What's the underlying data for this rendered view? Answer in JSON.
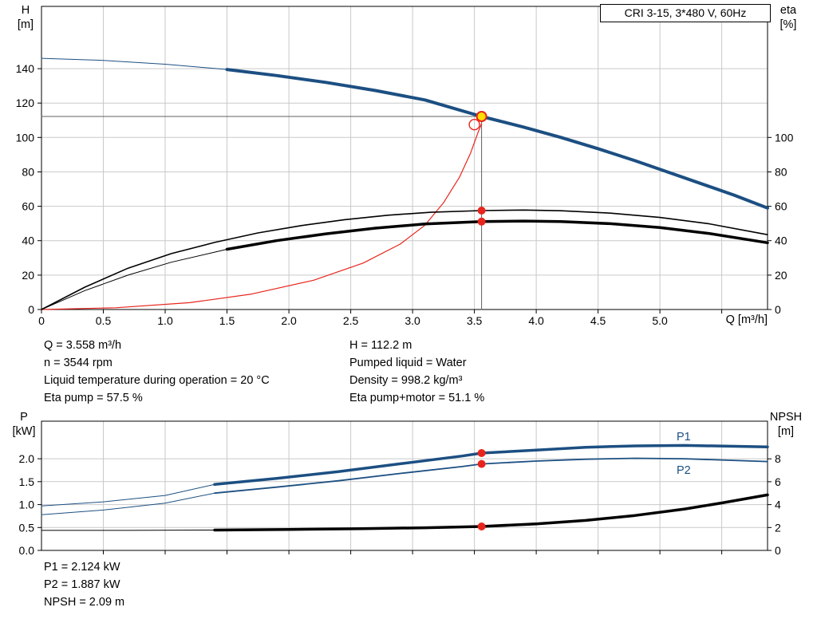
{
  "title_box": {
    "label": "CRI 3-15, 3*480 V, 60Hz"
  },
  "axis_corner_labels": {
    "top_left_1": "H",
    "top_left_2": "[m]",
    "top_right_1": "eta",
    "top_right_2": "[%]",
    "top_x": "Q [m³/h]",
    "bottom_left_1": "P",
    "bottom_left_2": "[kW]",
    "bottom_right_1": "NPSH",
    "bottom_right_2": "[m]"
  },
  "curve_labels": {
    "p1": "P1",
    "p2": "P2"
  },
  "info_top": {
    "left": [
      "Q = 3.558 m³/h",
      "n = 3544 rpm",
      "Liquid temperature during operation = 20 °C",
      "Eta pump = 57.5 %"
    ],
    "right": [
      "H = 112.2 m",
      "Pumped liquid = Water",
      "Density = 998.2 kg/m³",
      "Eta pump+motor = 51.1 %"
    ]
  },
  "info_bottom": [
    "P1 = 2.124 kW",
    "P2 = 1.887 kW",
    "NPSH = 2.09 m"
  ],
  "colors": {
    "curve_blue": "#1c4f82",
    "curve_black": "#000000",
    "curve_red": "#e8251d",
    "marker_red": "#e8251d",
    "marker_yellow": "#ffdf00",
    "crosshair": "#5f5f5f",
    "grid": "#c9c9c9"
  },
  "chart_data": [
    {
      "id": "head-capacity-efficiency",
      "type": "line",
      "title": "CRI 3-15, 3*480 V, 60Hz",
      "duty_point": {
        "q": 3.558,
        "h": 112.2,
        "eta_pump": 57.5,
        "eta_pump_motor": 51.1
      },
      "x_axis": {
        "label": "Q [m³/h]",
        "min": 0,
        "max": 5.87,
        "ticks": [
          [
            0,
            "0"
          ],
          [
            0.5,
            "0.5"
          ],
          [
            1,
            "1.0"
          ],
          [
            1.5,
            "1.5"
          ],
          [
            2,
            "2.0"
          ],
          [
            2.5,
            "2.5"
          ],
          [
            3,
            "3.0"
          ],
          [
            3.5,
            "3.5"
          ],
          [
            4,
            "4.0"
          ],
          [
            4.5,
            "4.5"
          ],
          [
            5,
            "5.0"
          ],
          [
            5.5,
            ""
          ]
        ]
      },
      "y_left": {
        "label": "H [m]",
        "min": 0,
        "max": 176.2,
        "ticks": [
          [
            0,
            "0"
          ],
          [
            20,
            "20"
          ],
          [
            40,
            "40"
          ],
          [
            60,
            "60"
          ],
          [
            80,
            "80"
          ],
          [
            100,
            "100"
          ],
          [
            120,
            "120"
          ],
          [
            140,
            "140"
          ]
        ]
      },
      "y_right": {
        "label": "eta [%]",
        "min": 0,
        "max": 176.2,
        "ticks": [
          [
            0,
            "0"
          ],
          [
            20,
            "20"
          ],
          [
            40,
            "40"
          ],
          [
            60,
            "60"
          ],
          [
            80,
            "80"
          ],
          [
            100,
            "100"
          ]
        ]
      },
      "series": [
        {
          "name": "crosshair",
          "axis": "left",
          "color": "#5f5f5f",
          "width": 1,
          "interactable": false,
          "points": [
            [
              0,
              112.2
            ],
            [
              3.558,
              112.2
            ],
            [
              3.558,
              0
            ]
          ]
        },
        {
          "name": "system-curve-red",
          "axis": "left",
          "color": "#e8251d",
          "width": 1.2,
          "interactable": false,
          "points": [
            [
              0,
              0
            ],
            [
              0.6,
              1
            ],
            [
              1.2,
              4
            ],
            [
              1.7,
              9
            ],
            [
              2.2,
              17
            ],
            [
              2.6,
              27
            ],
            [
              2.9,
              38
            ],
            [
              3.1,
              49
            ],
            [
              3.25,
              62
            ],
            [
              3.38,
              77
            ],
            [
              3.47,
              91
            ],
            [
              3.53,
              103
            ],
            [
              3.558,
              108
            ]
          ]
        },
        {
          "name": "hq-lead",
          "axis": "left",
          "color": "#1c4f82",
          "width": 1,
          "interactable": false,
          "points": [
            [
              0,
              146
            ],
            [
              0.5,
              144.8
            ],
            [
              1.0,
              142.6
            ],
            [
              1.5,
              139.5
            ]
          ]
        },
        {
          "name": "hq-main",
          "axis": "left",
          "color": "#1c4f82",
          "width": 4,
          "interactable": true,
          "points": [
            [
              1.5,
              139.5
            ],
            [
              1.9,
              136
            ],
            [
              2.3,
              132
            ],
            [
              2.7,
              127.3
            ],
            [
              3.1,
              121.8
            ],
            [
              3.558,
              112.2
            ],
            [
              3.9,
              106
            ],
            [
              4.2,
              100
            ],
            [
              4.5,
              93.5
            ],
            [
              4.8,
              86.5
            ],
            [
              5.1,
              79
            ],
            [
              5.4,
              71.5
            ],
            [
              5.6,
              66.5
            ],
            [
              5.87,
              59
            ]
          ]
        },
        {
          "name": "eta-pump",
          "axis": "right",
          "color": "#000000",
          "width": 1.6,
          "interactable": true,
          "points": [
            [
              0,
              0
            ],
            [
              0.35,
              13
            ],
            [
              0.7,
              24
            ],
            [
              1.05,
              32.5
            ],
            [
              1.4,
              39
            ],
            [
              1.75,
              44.5
            ],
            [
              2.1,
              48.8
            ],
            [
              2.45,
              52.2
            ],
            [
              2.8,
              54.8
            ],
            [
              3.15,
              56.5
            ],
            [
              3.558,
              57.5
            ],
            [
              3.9,
              57.8
            ],
            [
              4.2,
              57.4
            ],
            [
              4.6,
              56
            ],
            [
              5.0,
              53.5
            ],
            [
              5.4,
              49.8
            ],
            [
              5.87,
              43.5
            ]
          ]
        },
        {
          "name": "eta-pump-motor-lead",
          "axis": "right",
          "color": "#000000",
          "width": 1,
          "interactable": false,
          "points": [
            [
              0,
              0
            ],
            [
              0.35,
              11
            ],
            [
              0.7,
              20
            ],
            [
              1.05,
              27.5
            ],
            [
              1.5,
              35
            ]
          ]
        },
        {
          "name": "eta-pump-motor",
          "axis": "right",
          "color": "#000000",
          "width": 3.5,
          "interactable": true,
          "points": [
            [
              1.5,
              35
            ],
            [
              1.9,
              40
            ],
            [
              2.3,
              44
            ],
            [
              2.7,
              47.3
            ],
            [
              3.1,
              49.7
            ],
            [
              3.558,
              51.1
            ],
            [
              3.9,
              51.4
            ],
            [
              4.2,
              51.1
            ],
            [
              4.6,
              49.9
            ],
            [
              5.0,
              47.6
            ],
            [
              5.4,
              44.2
            ],
            [
              5.87,
              38.8
            ]
          ]
        }
      ],
      "markers": [
        {
          "type": "open",
          "axis": "left",
          "x": 3.5,
          "y": 107.5,
          "stroke": "#e8251d",
          "name": "system-point-marker",
          "interactable": false
        },
        {
          "type": "dot",
          "axis": "right",
          "x": 3.558,
          "y": 57.5,
          "fill": "#e8251d",
          "name": "eta-pump-marker",
          "interactable": false
        },
        {
          "type": "dot",
          "axis": "right",
          "x": 3.558,
          "y": 51.1,
          "fill": "#e8251d",
          "name": "eta-pump-motor-marker",
          "interactable": false
        },
        {
          "type": "op",
          "axis": "left",
          "x": 3.558,
          "y": 112.2,
          "fill": "#ffdf00",
          "stroke": "#e8251d",
          "name": "duty-point-marker",
          "interactable": true
        }
      ]
    },
    {
      "id": "power-npsh",
      "type": "line",
      "duty_point": {
        "q": 3.558,
        "p1_kw": 2.124,
        "p2_kw": 1.887,
        "npsh_m": 2.09
      },
      "x_axis": {
        "label": "",
        "min": 0,
        "max": 5.87,
        "ticks": [
          [
            0.5,
            ""
          ],
          [
            1,
            ""
          ],
          [
            1.5,
            ""
          ],
          [
            2,
            ""
          ],
          [
            2.5,
            ""
          ],
          [
            3,
            ""
          ],
          [
            3.5,
            ""
          ],
          [
            4,
            ""
          ],
          [
            4.5,
            ""
          ],
          [
            5,
            ""
          ],
          [
            5.5,
            ""
          ]
        ]
      },
      "y_left": {
        "label": "P [kW]",
        "min": 0,
        "max": 2.82,
        "ticks": [
          [
            0,
            "0.0"
          ],
          [
            0.5,
            "0.5"
          ],
          [
            1,
            "1.0"
          ],
          [
            1.5,
            "1.5"
          ],
          [
            2,
            "2.0"
          ]
        ]
      },
      "y_right": {
        "label": "NPSH [m]",
        "min": 0,
        "max": 11.29,
        "ticks": [
          [
            0,
            "0"
          ],
          [
            2,
            "2"
          ],
          [
            4,
            "4"
          ],
          [
            6,
            "6"
          ],
          [
            8,
            "8"
          ]
        ]
      },
      "series": [
        {
          "name": "p1-lead",
          "axis": "left",
          "color": "#1c4f82",
          "width": 1,
          "interactable": false,
          "points": [
            [
              0,
              0.97
            ],
            [
              0.5,
              1.06
            ],
            [
              1.0,
              1.2
            ],
            [
              1.4,
              1.44
            ]
          ]
        },
        {
          "name": "p1",
          "axis": "left",
          "color": "#1c4f82",
          "width": 3.5,
          "interactable": true,
          "points": [
            [
              1.4,
              1.44
            ],
            [
              1.9,
              1.57
            ],
            [
              2.4,
              1.72
            ],
            [
              2.9,
              1.89
            ],
            [
              3.4,
              2.06
            ],
            [
              3.558,
              2.124
            ],
            [
              4.0,
              2.19
            ],
            [
              4.4,
              2.25
            ],
            [
              4.8,
              2.28
            ],
            [
              5.2,
              2.29
            ],
            [
              5.87,
              2.26
            ]
          ]
        },
        {
          "name": "p2-lead",
          "axis": "left",
          "color": "#1c4f82",
          "width": 1,
          "interactable": false,
          "points": [
            [
              0,
              0.78
            ],
            [
              0.5,
              0.88
            ],
            [
              1.0,
              1.03
            ],
            [
              1.4,
              1.25
            ]
          ]
        },
        {
          "name": "p2",
          "axis": "left",
          "color": "#1c4f82",
          "width": 1.8,
          "interactable": true,
          "points": [
            [
              1.4,
              1.25
            ],
            [
              1.9,
              1.38
            ],
            [
              2.4,
              1.52
            ],
            [
              2.9,
              1.68
            ],
            [
              3.4,
              1.83
            ],
            [
              3.558,
              1.887
            ],
            [
              4.0,
              1.95
            ],
            [
              4.4,
              1.99
            ],
            [
              4.8,
              2.01
            ],
            [
              5.2,
              2.0
            ],
            [
              5.87,
              1.94
            ]
          ]
        },
        {
          "name": "npsh-lead",
          "axis": "right",
          "color": "#000000",
          "width": 1,
          "interactable": false,
          "points": [
            [
              0,
              1.75
            ],
            [
              0.7,
              1.75
            ],
            [
              1.4,
              1.78
            ]
          ]
        },
        {
          "name": "npsh",
          "axis": "right",
          "color": "#000000",
          "width": 3.5,
          "interactable": true,
          "points": [
            [
              1.4,
              1.78
            ],
            [
              2.0,
              1.83
            ],
            [
              2.6,
              1.9
            ],
            [
              3.1,
              1.98
            ],
            [
              3.558,
              2.09
            ],
            [
              4.0,
              2.32
            ],
            [
              4.4,
              2.62
            ],
            [
              4.8,
              3.05
            ],
            [
              5.2,
              3.62
            ],
            [
              5.5,
              4.15
            ],
            [
              5.87,
              4.85
            ]
          ]
        }
      ],
      "markers": [
        {
          "type": "dot",
          "axis": "left",
          "x": 3.558,
          "y": 2.124,
          "fill": "#e8251d",
          "name": "p1-marker",
          "interactable": false
        },
        {
          "type": "dot",
          "axis": "left",
          "x": 3.558,
          "y": 1.887,
          "fill": "#e8251d",
          "name": "p2-marker",
          "interactable": false
        },
        {
          "type": "dot",
          "axis": "right",
          "x": 3.558,
          "y": 2.09,
          "fill": "#e8251d",
          "name": "npsh-marker",
          "interactable": false
        }
      ]
    }
  ]
}
